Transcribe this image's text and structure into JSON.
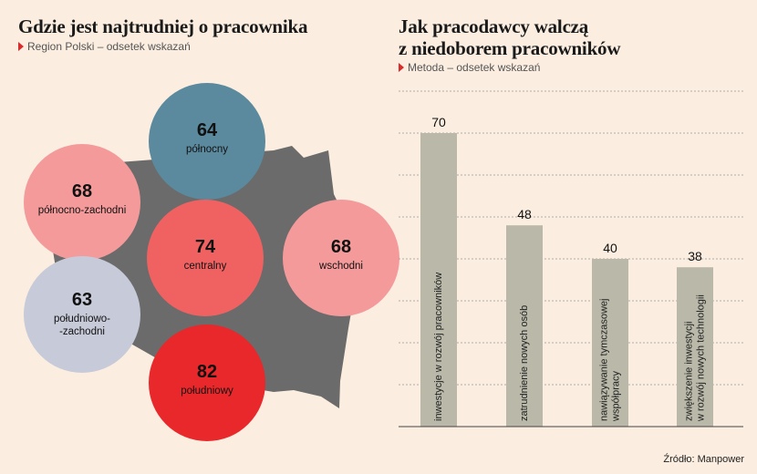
{
  "left_panel": {
    "title": "Gdzie jest najtrudniej o pracownika",
    "subtitle": "Region Polski – odsetek wskazań"
  },
  "right_panel": {
    "title_line1": "Jak pracodawcy walczą",
    "title_line2": "z niedoborem pracowników",
    "subtitle": "Metoda – odsetek wskazań"
  },
  "source": "Źródło: Manpower",
  "colors": {
    "background": "#fbeee0",
    "map": "#6b6b6b",
    "bar": "#b9b8a9",
    "accent": "#d92b2b"
  },
  "chart_data": [
    {
      "type": "bubble-map",
      "title": "Gdzie jest najtrudniej o pracownika",
      "subtitle": "Region Polski – odsetek wskazań",
      "regions": [
        {
          "name": "północny",
          "label_lines": [
            "północny"
          ],
          "value": 64,
          "color": "#5b8a9e"
        },
        {
          "name": "północno-zachodni",
          "label_lines": [
            "północno-zachodni"
          ],
          "value": 68,
          "color": "#f59a9a"
        },
        {
          "name": "centralny",
          "label_lines": [
            "centralny"
          ],
          "value": 74,
          "color": "#f06262"
        },
        {
          "name": "wschodni",
          "label_lines": [
            "wschodni"
          ],
          "value": 68,
          "color": "#f59a9a"
        },
        {
          "name": "południowo-zachodni",
          "label_lines": [
            "południowo-",
            "-zachodni"
          ],
          "value": 63,
          "color": "#c7cad8"
        },
        {
          "name": "południowy",
          "label_lines": [
            "południowy"
          ],
          "value": 82,
          "color": "#e8282b"
        }
      ]
    },
    {
      "type": "bar",
      "title": "Jak pracodawcy walczą z niedoborem pracowników",
      "subtitle": "Metoda – odsetek wskazań",
      "categories": [
        "inwestycje w rozwój pracowników",
        "zatrudnienie nowych osób",
        "nawiązywanie tymczasowej współpracy",
        "zwiększenie inwestycji w rozwój nowych technologii"
      ],
      "category_label_lines": [
        [
          "inwestycje w rozwój pracowników"
        ],
        [
          "zatrudnienie nowych osób"
        ],
        [
          "nawiązywanie tymczasowej",
          "współpracy"
        ],
        [
          "zwiększenie inwestycji",
          "w rozwój nowych technologii"
        ]
      ],
      "values": [
        70,
        48,
        40,
        38
      ],
      "ylim": [
        0,
        80
      ],
      "grid": true,
      "xlabel": "",
      "ylabel": ""
    }
  ]
}
